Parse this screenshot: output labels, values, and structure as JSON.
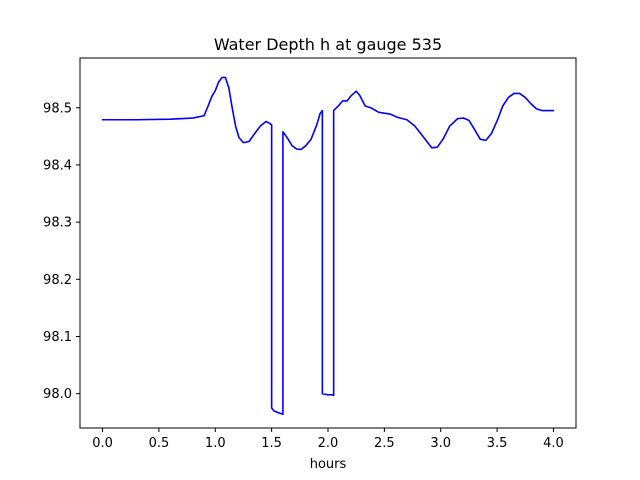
{
  "chart_data": {
    "type": "line",
    "title": "Water Depth h at gauge 535",
    "xlabel": "hours",
    "ylabel": "",
    "xlim": [
      -0.2,
      4.2
    ],
    "ylim": [
      97.94,
      98.587
    ],
    "xticks": [
      0.0,
      0.5,
      1.0,
      1.5,
      2.0,
      2.5,
      3.0,
      3.5,
      4.0
    ],
    "xtick_labels": [
      "0.0",
      "0.5",
      "1.0",
      "1.5",
      "2.0",
      "2.5",
      "3.0",
      "3.5",
      "4.0"
    ],
    "yticks": [
      98.0,
      98.1,
      98.2,
      98.3,
      98.4,
      98.5
    ],
    "ytick_labels": [
      "98.0",
      "98.1",
      "98.2",
      "98.3",
      "98.4",
      "98.5"
    ],
    "grid": false,
    "legend": "none",
    "series": [
      {
        "color": "#0000ff",
        "x": [
          0.0,
          0.3,
          0.6,
          0.8,
          0.9,
          0.93,
          0.97,
          1.0,
          1.03,
          1.06,
          1.09,
          1.12,
          1.15,
          1.18,
          1.21,
          1.25,
          1.3,
          1.35,
          1.4,
          1.45,
          1.48,
          1.5,
          1.5,
          1.52,
          1.57,
          1.6,
          1.6,
          1.64,
          1.68,
          1.72,
          1.76,
          1.8,
          1.85,
          1.9,
          1.93,
          1.95,
          1.95,
          2.0,
          2.04,
          2.05,
          2.05,
          2.1,
          2.13,
          2.17,
          2.2,
          2.25,
          2.28,
          2.33,
          2.38,
          2.45,
          2.55,
          2.62,
          2.7,
          2.77,
          2.85,
          2.92,
          2.97,
          3.02,
          3.08,
          3.15,
          3.2,
          3.25,
          3.3,
          3.35,
          3.4,
          3.45,
          3.5,
          3.55,
          3.6,
          3.65,
          3.7,
          3.75,
          3.8,
          3.85,
          3.9,
          3.95,
          4.0
        ],
        "y": [
          98.479,
          98.479,
          98.48,
          98.482,
          98.486,
          98.5,
          98.52,
          98.53,
          98.545,
          98.553,
          98.553,
          98.535,
          98.5,
          98.468,
          98.448,
          98.439,
          98.441,
          98.455,
          98.468,
          98.476,
          98.473,
          98.47,
          97.975,
          97.97,
          97.966,
          97.964,
          98.458,
          98.447,
          98.434,
          98.428,
          98.427,
          98.433,
          98.445,
          98.47,
          98.49,
          98.495,
          98.0,
          97.998,
          97.998,
          97.997,
          98.495,
          98.505,
          98.512,
          98.512,
          98.52,
          98.529,
          98.522,
          98.503,
          98.5,
          98.492,
          98.489,
          98.483,
          98.479,
          98.468,
          98.448,
          98.43,
          98.431,
          98.445,
          98.468,
          98.481,
          98.482,
          98.478,
          98.462,
          98.445,
          98.443,
          98.455,
          98.477,
          98.503,
          98.518,
          98.525,
          98.525,
          98.518,
          98.507,
          98.498,
          98.495,
          98.495,
          98.495
        ]
      }
    ]
  }
}
